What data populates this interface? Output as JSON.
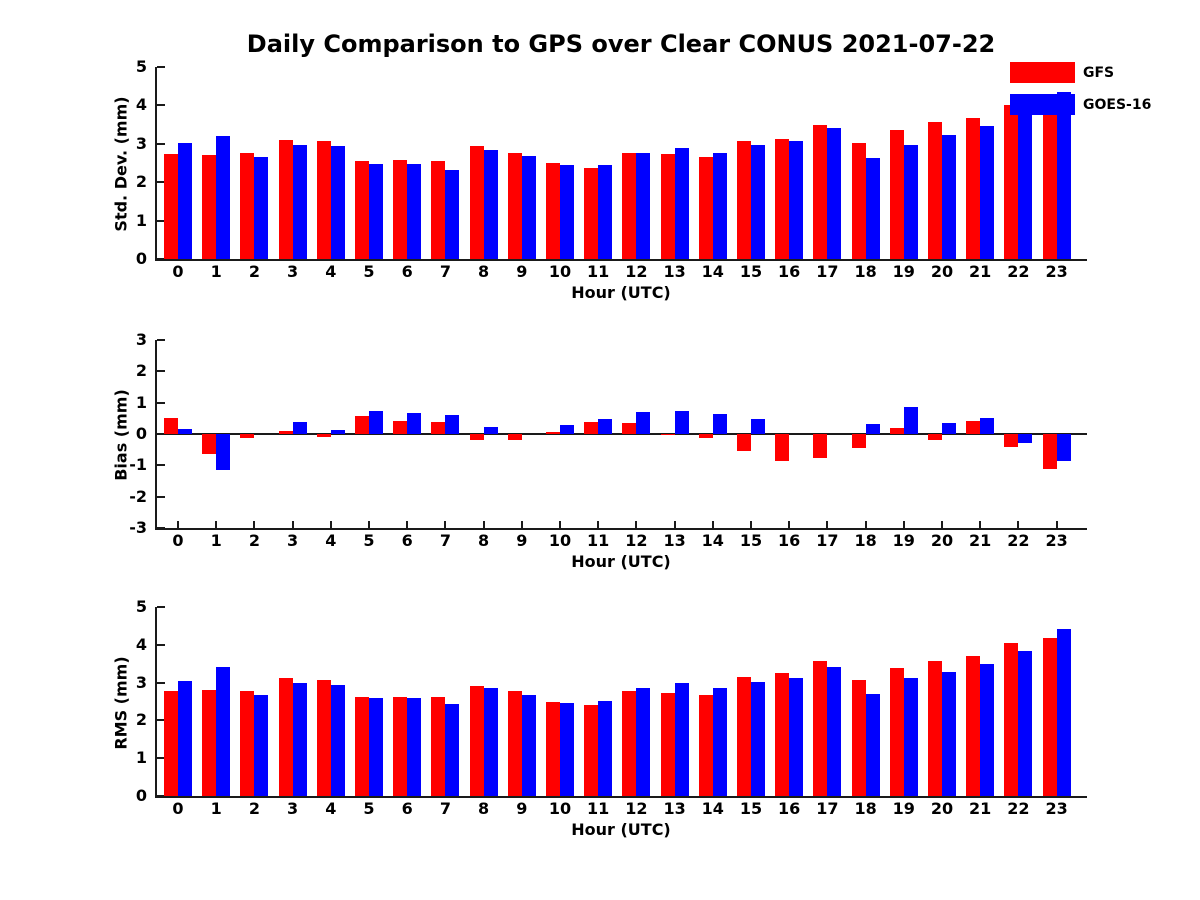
{
  "title": "Daily Comparison to GPS over Clear CONUS 2021-07-22",
  "colors": {
    "gfs": "#ff0000",
    "goes16": "#0000ff",
    "axis": "#1a1a1a",
    "background": "#ffffff"
  },
  "legend": {
    "position": "top-right-overlapping-plot",
    "frame": false,
    "items": [
      {
        "label": "GFS",
        "color": "#ff0000"
      },
      {
        "label": "GOES-16",
        "color": "#0000ff"
      }
    ]
  },
  "chart_data": [
    {
      "type": "bar",
      "title": "",
      "ylabel": "Std. Dev. (mm)",
      "xlabel": "Hour (UTC)",
      "ylim": [
        0,
        5
      ],
      "yticks": [
        0,
        1,
        2,
        3,
        4,
        5
      ],
      "grid": false,
      "categories": [
        0,
        1,
        2,
        3,
        4,
        5,
        6,
        7,
        8,
        9,
        10,
        11,
        12,
        13,
        14,
        15,
        16,
        17,
        18,
        19,
        20,
        21,
        22,
        23
      ],
      "series": [
        {
          "name": "GFS",
          "color": "#ff0000",
          "values": [
            2.73,
            2.71,
            2.76,
            3.11,
            3.07,
            2.55,
            2.58,
            2.55,
            2.94,
            2.77,
            2.5,
            2.36,
            2.77,
            2.73,
            2.65,
            3.08,
            3.13,
            3.5,
            3.01,
            3.37,
            3.56,
            3.66,
            4.0,
            3.74
          ]
        },
        {
          "name": "GOES-16",
          "color": "#0000ff",
          "values": [
            3.01,
            3.21,
            2.66,
            2.96,
            2.94,
            2.47,
            2.48,
            2.32,
            2.84,
            2.69,
            2.46,
            2.45,
            2.76,
            2.88,
            2.77,
            2.96,
            3.07,
            3.4,
            2.64,
            2.96,
            3.24,
            3.46,
            3.85,
            4.35
          ]
        }
      ]
    },
    {
      "type": "bar",
      "title": "",
      "ylabel": "Bias (mm)",
      "xlabel": "Hour (UTC)",
      "ylim": [
        -3,
        3
      ],
      "yticks": [
        -3,
        -2,
        -1,
        0,
        1,
        2,
        3
      ],
      "grid": false,
      "zero_line": true,
      "categories": [
        0,
        1,
        2,
        3,
        4,
        5,
        6,
        7,
        8,
        9,
        10,
        11,
        12,
        13,
        14,
        15,
        16,
        17,
        18,
        19,
        20,
        21,
        22,
        23
      ],
      "series": [
        {
          "name": "GFS",
          "color": "#ff0000",
          "values": [
            0.52,
            -0.63,
            -0.13,
            0.1,
            -0.1,
            0.57,
            0.4,
            0.37,
            -0.18,
            -0.2,
            0.07,
            0.37,
            0.35,
            -0.03,
            -0.14,
            -0.55,
            -0.85,
            -0.75,
            -0.45,
            0.2,
            -0.18,
            0.4,
            -0.4,
            -1.12
          ]
        },
        {
          "name": "GOES-16",
          "color": "#0000ff",
          "values": [
            0.17,
            -1.15,
            0.0,
            0.39,
            0.12,
            0.73,
            0.68,
            0.6,
            0.23,
            0.0,
            0.28,
            0.47,
            0.7,
            0.73,
            0.64,
            0.47,
            0.0,
            0.0,
            0.32,
            0.85,
            0.35,
            0.5,
            -0.28,
            -0.85
          ]
        }
      ]
    },
    {
      "type": "bar",
      "title": "",
      "ylabel": "RMS (mm)",
      "xlabel": "Hour (UTC)",
      "ylim": [
        0,
        5
      ],
      "yticks": [
        0,
        1,
        2,
        3,
        4,
        5
      ],
      "grid": false,
      "categories": [
        0,
        1,
        2,
        3,
        4,
        5,
        6,
        7,
        8,
        9,
        10,
        11,
        12,
        13,
        14,
        15,
        16,
        17,
        18,
        19,
        20,
        21,
        22,
        23
      ],
      "series": [
        {
          "name": "GFS",
          "color": "#ff0000",
          "values": [
            2.77,
            2.81,
            2.77,
            3.11,
            3.07,
            2.62,
            2.63,
            2.61,
            2.92,
            2.77,
            2.5,
            2.4,
            2.78,
            2.72,
            2.67,
            3.14,
            3.26,
            3.58,
            3.08,
            3.39,
            3.58,
            3.7,
            4.04,
            4.18
          ]
        },
        {
          "name": "GOES-16",
          "color": "#0000ff",
          "values": [
            3.03,
            3.42,
            2.66,
            2.98,
            2.94,
            2.58,
            2.58,
            2.43,
            2.86,
            2.68,
            2.47,
            2.51,
            2.87,
            2.99,
            2.86,
            3.02,
            3.11,
            3.4,
            2.71,
            3.11,
            3.27,
            3.5,
            3.84,
            4.41
          ]
        }
      ]
    }
  ]
}
